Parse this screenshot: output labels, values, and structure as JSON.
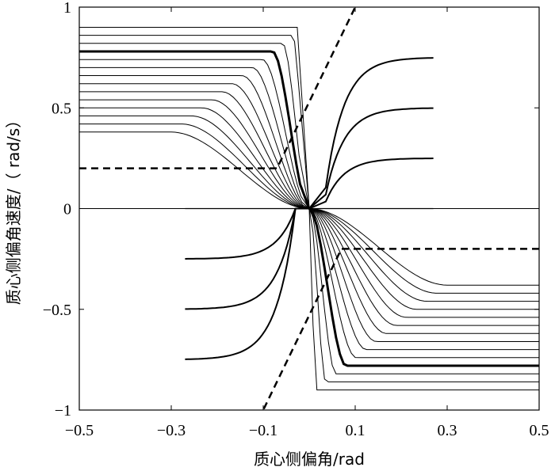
{
  "chart_data": {
    "type": "line",
    "xlabel": "质心侧偏角/rad",
    "ylabel": "质心侧偏角速度/（ rad/s）",
    "xlim": [
      -0.5,
      0.5
    ],
    "ylim": [
      -1,
      1
    ],
    "grid": false,
    "legend": "none",
    "x_tick_labels": [
      {
        "value": -0.5,
        "label": "−0.5"
      },
      {
        "value": -0.3,
        "label": "−0.3"
      },
      {
        "value": -0.1,
        "label": "−0.1"
      },
      {
        "value": 0.1,
        "label": "0.1"
      },
      {
        "value": 0.3,
        "label": "0.3"
      },
      {
        "value": 0.5,
        "label": "0.5"
      }
    ],
    "y_tick_labels": [
      {
        "value": 1,
        "label": "1"
      },
      {
        "value": 0.5,
        "label": "0.5"
      },
      {
        "value": 0,
        "label": "0"
      },
      {
        "value": -0.5,
        "label": "−0.5"
      },
      {
        "value": -1,
        "label": "−1"
      }
    ],
    "boundary_lines": [
      {
        "style": "dashed",
        "x": [
          -0.5,
          -0.08,
          -0.07,
          0.1
        ],
        "y": [
          0.2,
          0.2,
          0.2,
          1.0
        ]
      },
      {
        "style": "dashed",
        "x": [
          0.5,
          0.08,
          0.07,
          -0.1
        ],
        "y": [
          -0.2,
          -0.2,
          -0.2,
          -1.0
        ]
      }
    ],
    "trajectories_upper_left": {
      "start_y": [
        0.98,
        0.94,
        0.9,
        0.86,
        0.82,
        0.78,
        0.74,
        0.7,
        0.66,
        0.62,
        0.58,
        0.54,
        0.5,
        0.46,
        0.42,
        0.38
      ],
      "bold_start_y": [
        0.78,
        0.52
      ]
    },
    "trajectories_upper_right": {
      "x_end": 0.27,
      "end_y": [
        0.75,
        0.5,
        0.25
      ],
      "bold_end_y": [
        0.75,
        0.5,
        0.25
      ]
    },
    "trajectories_lower_right": {
      "start_y": [
        -0.38,
        -0.42,
        -0.46,
        -0.5,
        -0.54,
        -0.58,
        -0.62,
        -0.66,
        -0.7,
        -0.74,
        -0.78,
        -0.82,
        -0.86,
        -0.9,
        -0.94,
        -0.98
      ],
      "bold_start_y": [
        -0.52,
        -0.78
      ]
    },
    "trajectories_lower_left": {
      "x_start": -0.27,
      "start_y": [
        -0.25,
        -0.5,
        -0.75
      ],
      "bold_start_y": [
        -0.25,
        -0.5,
        -0.75
      ]
    },
    "center_line": {
      "x": [
        -0.27,
        0.27
      ],
      "y": [
        0,
        0
      ]
    }
  }
}
